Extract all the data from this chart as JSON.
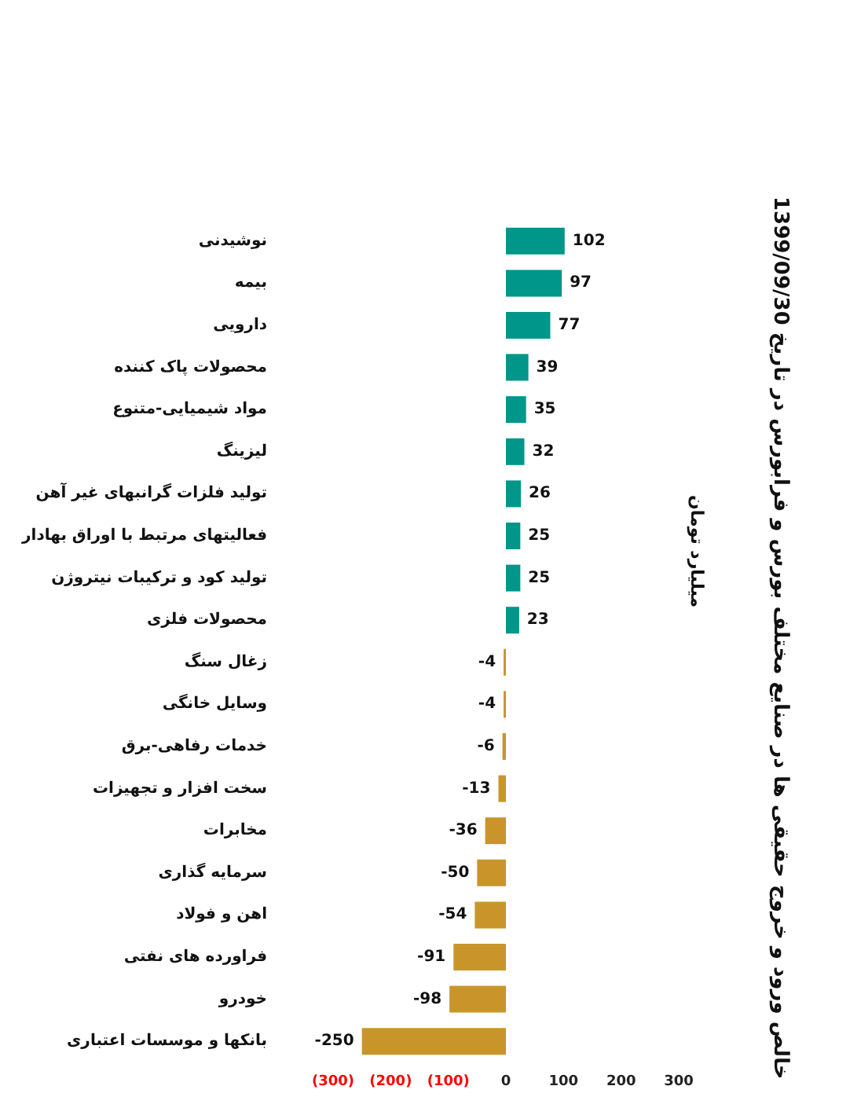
{
  "chart_data": {
    "type": "bar",
    "orientation": "horizontal",
    "title": "خالص ورود و خروج حقیقی ها در صنایع مختلف بورس و فرابورس در تاریخ 1399/09/30",
    "subtitle": "میلیارد تومان",
    "categories": [
      "نوشیدنی",
      "بیمه",
      "دارویی",
      "محصولات پاک کننده",
      "مواد شیمیایی-متنوع",
      "لیزینگ",
      "تولید فلزات گرانبهای غیر آهن",
      "فعالیتهای مرتبط با اوراق بهادار",
      "تولید کود و ترکیبات نیتروژن",
      "محصولات فلزی",
      "زغال سنگ",
      "وسایل خانگی",
      "خدمات رفاهی-برق",
      "سخت افزار و تجهیزات",
      "مخابرات",
      "سرمایه گذاری",
      "اهن و فولاد",
      "فراورده های نفتی",
      "خودرو",
      "بانکها و موسسات اعتباری"
    ],
    "values": [
      102,
      97,
      77,
      39,
      35,
      32,
      26,
      25,
      25,
      23,
      -4,
      -4,
      -6,
      -13,
      -36,
      -50,
      -54,
      -91,
      -98,
      -250
    ],
    "colors": [
      "#00968a",
      "#00968a",
      "#00968a",
      "#00968a",
      "#00968a",
      "#00968a",
      "#00968a",
      "#00968a",
      "#00968a",
      "#00968a",
      "#c9952b",
      "#c9952b",
      "#c9952b",
      "#c9952b",
      "#c9952b",
      "#c9952b",
      "#c9952b",
      "#c9952b",
      "#c9952b",
      "#c9952b"
    ],
    "xlim": [
      -300,
      300
    ],
    "xticks": [
      {
        "value": -300,
        "label": "(300)"
      },
      {
        "value": -200,
        "label": "(200)"
      },
      {
        "value": -100,
        "label": "(100)"
      },
      0,
      100,
      200,
      300
    ],
    "data_labels": true,
    "grid": false
  }
}
